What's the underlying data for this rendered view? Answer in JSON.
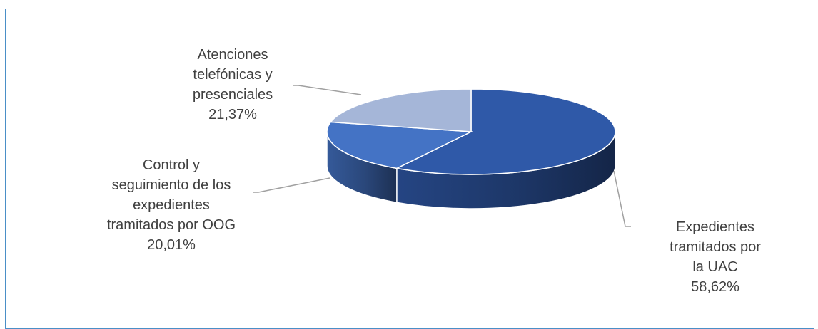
{
  "chart_data": {
    "type": "pie",
    "style": "3d",
    "slices": [
      {
        "label_lines": [
          "Expedientes",
          "tramitados por",
          "la UAC"
        ],
        "percent_label": "58,62%",
        "value": 58.62,
        "color": "#2f59a8"
      },
      {
        "label_lines": [
          "Control y",
          "seguimiento de los",
          "expedientes",
          "tramitados por OOG"
        ],
        "percent_label": "20,01%",
        "value": 20.01,
        "color": "#4473c5"
      },
      {
        "label_lines": [
          "Atenciones",
          "telefónicas y",
          "presenciales"
        ],
        "percent_label": "21,37%",
        "value": 21.37,
        "color": "#a5b6d8"
      }
    ]
  }
}
